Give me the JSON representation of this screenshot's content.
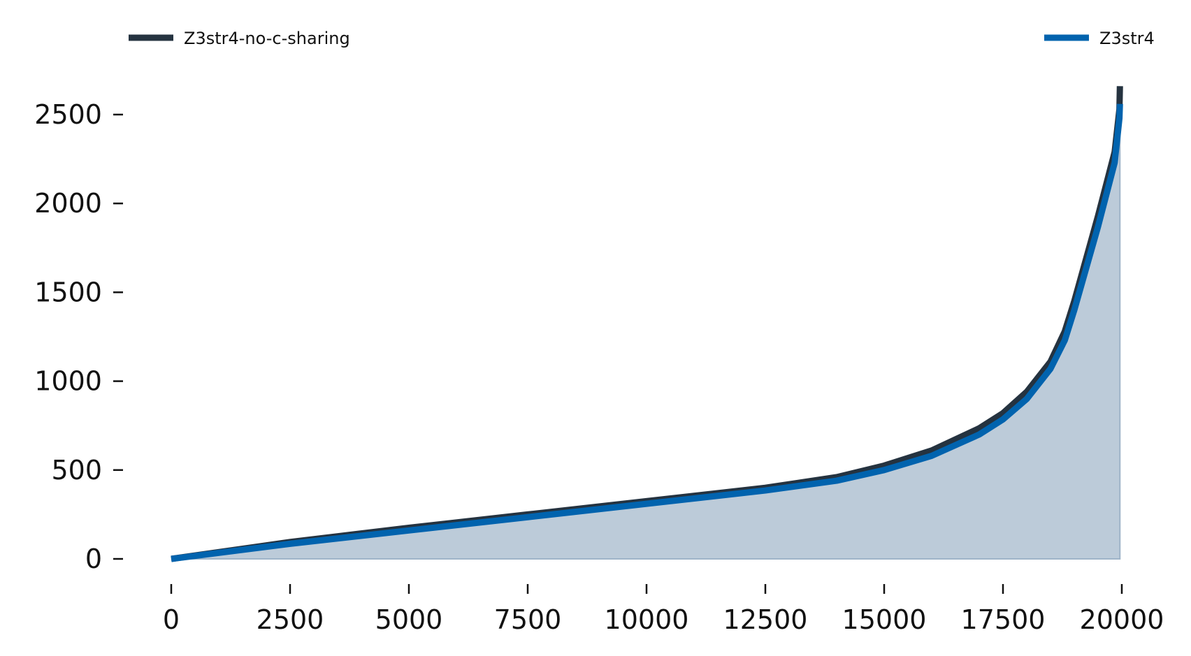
{
  "chart_data": {
    "type": "area",
    "title": "",
    "xlabel": "",
    "ylabel": "",
    "xlim": [
      -300,
      20000
    ],
    "ylim": [
      -60,
      2700
    ],
    "grid": false,
    "legend_placement": "top",
    "xticks": [
      0,
      2500,
      5000,
      7500,
      10000,
      12500,
      15000,
      17500,
      20000
    ],
    "yticks": [
      0,
      500,
      1000,
      1500,
      2000,
      2500
    ],
    "xtick_labels": [
      "0",
      "2500",
      "5000",
      "7500",
      "10000",
      "12500",
      "15000",
      "17500",
      "20000"
    ],
    "ytick_labels": [
      "0",
      "500",
      "1000",
      "1500",
      "2000",
      "2500"
    ],
    "series": [
      {
        "name": "Z3str4-no-c-sharing",
        "color": "#253340",
        "x": [
          0,
          2500,
          5000,
          7500,
          10000,
          12500,
          14000,
          15000,
          16000,
          17000,
          17500,
          18000,
          18500,
          18800,
          19000,
          19500,
          19850,
          19950,
          19960
        ],
        "y": [
          0,
          95,
          175,
          250,
          325,
          400,
          460,
          525,
          610,
          735,
          820,
          940,
          1110,
          1280,
          1450,
          1930,
          2290,
          2530,
          2660
        ]
      },
      {
        "name": "Z3str4",
        "color": "#0163ae",
        "x": [
          0,
          2500,
          5000,
          7500,
          10000,
          12500,
          14000,
          15000,
          16000,
          17000,
          17500,
          18000,
          18500,
          18800,
          19000,
          19500,
          19850,
          19950,
          19960
        ],
        "y": [
          0,
          85,
          160,
          235,
          310,
          385,
          440,
          500,
          580,
          700,
          785,
          900,
          1070,
          1230,
          1400,
          1870,
          2230,
          2480,
          2560
        ]
      }
    ],
    "fill": {
      "under_series": "Z3str4",
      "color": "#bccbd9"
    }
  }
}
